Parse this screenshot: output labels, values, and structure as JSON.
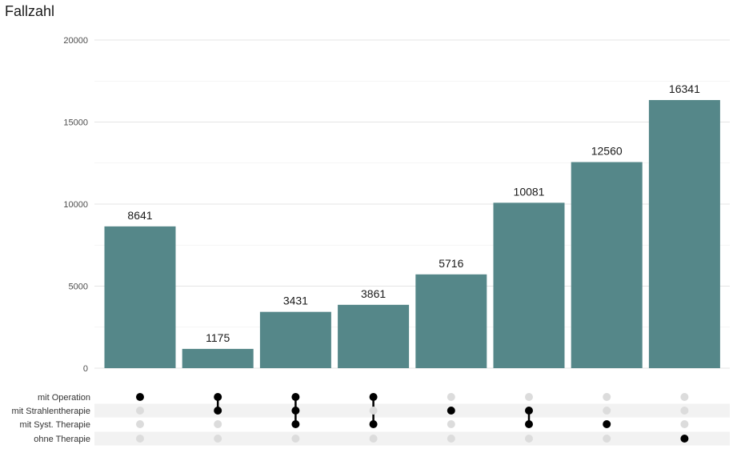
{
  "chart_data": {
    "type": "bar",
    "subtype": "upset",
    "title": "Fallzahl",
    "ylim": [
      0,
      20000
    ],
    "yticks": [
      0,
      5000,
      10000,
      15000,
      20000
    ],
    "grid": true,
    "bar_color": "#558789",
    "values": [
      8641,
      1175,
      3431,
      3861,
      5716,
      10081,
      12560,
      16341
    ],
    "sets": [
      "mit Operation",
      "mit Strahlentherapie",
      "mit Syst. Therapie",
      "ohne Therapie"
    ],
    "combinations": [
      [
        0
      ],
      [
        0,
        1
      ],
      [
        0,
        1,
        2
      ],
      [
        0,
        2
      ],
      [
        1
      ],
      [
        1,
        2
      ],
      [
        2
      ],
      [
        3
      ]
    ],
    "dot_active_color": "#000000",
    "dot_inactive_color": "#dcdcdc",
    "stripe_color": "#f2f2f2"
  }
}
